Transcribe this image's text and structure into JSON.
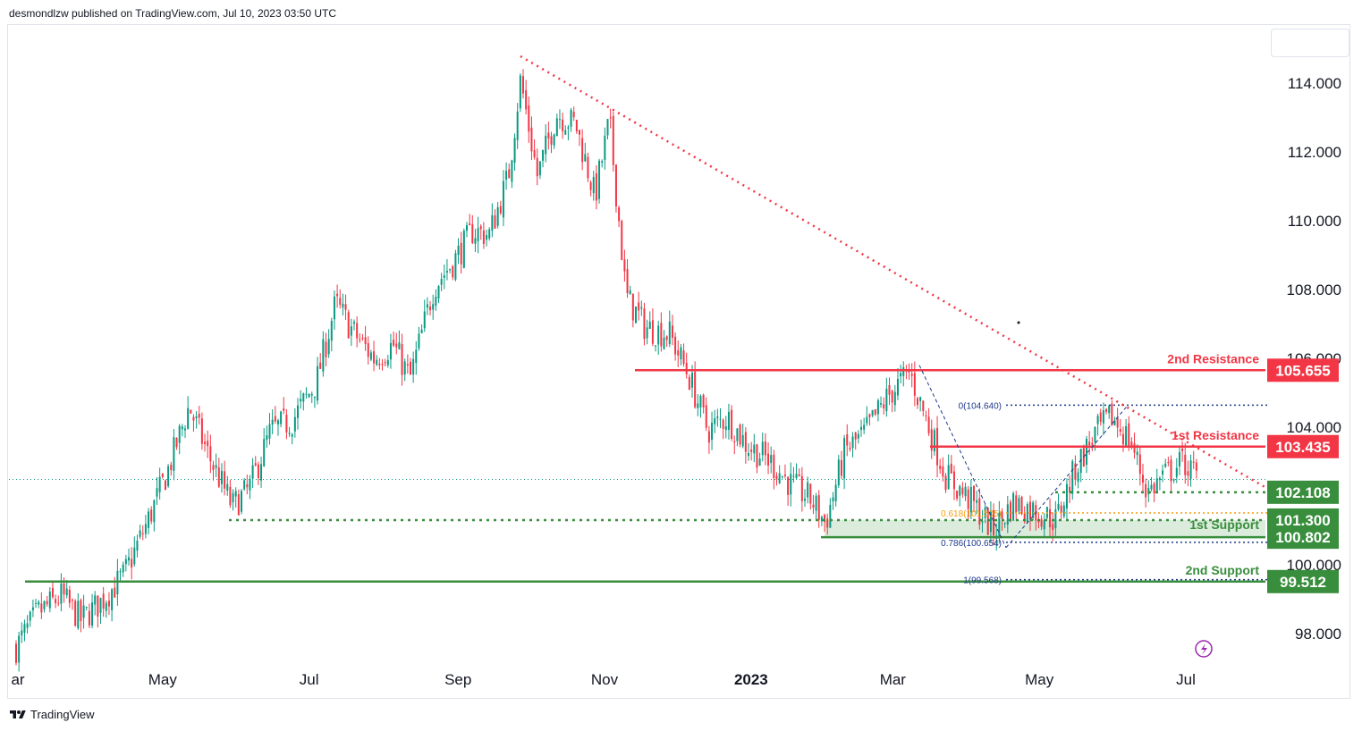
{
  "header": {
    "published_text": "desmondlzw published on TradingView.com, Jul 10, 2023 03:50 UTC"
  },
  "footer": {
    "brand_text": "TradingView"
  },
  "chart_data": {
    "type": "candlestick",
    "y_ticks": [
      "114.000",
      "112.000",
      "110.000",
      "108.000",
      "106.000",
      "104.000",
      "100.000",
      "98.000"
    ],
    "y_tick_values": [
      114,
      112,
      110,
      108,
      106,
      104,
      100,
      98
    ],
    "ylim": [
      97.3,
      115.5
    ],
    "x_ticks": [
      {
        "label": "ar",
        "date": "2022-03"
      },
      {
        "label": "May",
        "date": "2022-05"
      },
      {
        "label": "Jul",
        "date": "2022-07"
      },
      {
        "label": "Sep",
        "date": "2022-09"
      },
      {
        "label": "Nov",
        "date": "2022-11"
      },
      {
        "label": "2023",
        "date": "2023-01",
        "bold": true
      },
      {
        "label": "Mar",
        "date": "2023-03"
      },
      {
        "label": "May",
        "date": "2023-05"
      },
      {
        "label": "Jul",
        "date": "2023-07"
      }
    ],
    "levels": [
      {
        "name": "2nd Resistance",
        "value": 105.655,
        "label": "105.655",
        "color": "#f23645",
        "kind": "resistance"
      },
      {
        "name": "1st Resistance",
        "value": 103.435,
        "label": "103.435",
        "color": "#f23645",
        "kind": "resistance"
      },
      {
        "name": "",
        "value": 102.108,
        "label": "102.108",
        "color": "#388e3c",
        "kind": "pivot"
      },
      {
        "name": "1st Support",
        "value": 100.802,
        "label": "100.802",
        "color": "#388e3c",
        "kind": "support"
      },
      {
        "name": "",
        "value": 101.3,
        "label": "101.300",
        "color": "#388e3c",
        "kind": "support-top"
      },
      {
        "name": "2nd Support",
        "value": 99.512,
        "label": "99.512",
        "color": "#388e3c",
        "kind": "support"
      }
    ],
    "fib_levels": [
      {
        "label": "0(104.640)",
        "value": 104.64,
        "color": "#1e3a8a"
      },
      {
        "label": "0.618(101.505)",
        "value": 101.505,
        "color": "#f59e0b"
      },
      {
        "label": "0.786(100.654)",
        "value": 100.654,
        "color": "#1e3a8a"
      },
      {
        "label": "1(99.568)",
        "value": 99.568,
        "color": "#1e3a8a"
      }
    ],
    "trendline": {
      "from_date": "2022-09-27",
      "from_value": 114.78,
      "to_date": "2023-07-20",
      "to_value": 102.25
    },
    "current_price": 102.48,
    "colors": {
      "up": "#089981",
      "down": "#f23645",
      "bg": "#ffffff"
    },
    "candles_close_path": [
      [
        "2022-03-01",
        97.6
      ],
      [
        "2022-03-10",
        98.6
      ],
      [
        "2022-03-20",
        99.1
      ],
      [
        "2022-03-28",
        98.4
      ],
      [
        "2022-04-05",
        98.9
      ],
      [
        "2022-04-15",
        99.7
      ],
      [
        "2022-04-25",
        101.3
      ],
      [
        "2022-05-03",
        102.7
      ],
      [
        "2022-05-12",
        104.6
      ],
      [
        "2022-05-20",
        103.2
      ],
      [
        "2022-05-30",
        101.7
      ],
      [
        "2022-06-06",
        102.2
      ],
      [
        "2022-06-15",
        103.9
      ],
      [
        "2022-06-24",
        104.2
      ],
      [
        "2022-07-04",
        105.3
      ],
      [
        "2022-07-12",
        107.6
      ],
      [
        "2022-07-20",
        106.7
      ],
      [
        "2022-07-28",
        106.0
      ],
      [
        "2022-08-05",
        106.4
      ],
      [
        "2022-08-12",
        105.4
      ],
      [
        "2022-08-22",
        108.1
      ],
      [
        "2022-08-30",
        108.8
      ],
      [
        "2022-09-07",
        109.7
      ],
      [
        "2022-09-14",
        109.6
      ],
      [
        "2022-09-22",
        111.3
      ],
      [
        "2022-09-27",
        114.1
      ],
      [
        "2022-10-04",
        111.3
      ],
      [
        "2022-10-12",
        113.1
      ],
      [
        "2022-10-20",
        112.8
      ],
      [
        "2022-10-28",
        110.7
      ],
      [
        "2022-11-03",
        112.9
      ],
      [
        "2022-11-10",
        107.8
      ],
      [
        "2022-11-18",
        106.9
      ],
      [
        "2022-11-28",
        106.7
      ],
      [
        "2022-12-06",
        105.5
      ],
      [
        "2022-12-14",
        103.9
      ],
      [
        "2022-12-22",
        104.3
      ],
      [
        "2022-12-30",
        103.5
      ],
      [
        "2023-01-09",
        103.0
      ],
      [
        "2023-01-18",
        102.3
      ],
      [
        "2023-01-26",
        101.9
      ],
      [
        "2023-02-01",
        101.2
      ],
      [
        "2023-02-09",
        103.3
      ],
      [
        "2023-02-17",
        103.8
      ],
      [
        "2023-02-27",
        104.9
      ],
      [
        "2023-03-08",
        105.6
      ],
      [
        "2023-03-15",
        104.2
      ],
      [
        "2023-03-23",
        102.6
      ],
      [
        "2023-04-03",
        101.8
      ],
      [
        "2023-04-12",
        101.0
      ],
      [
        "2023-04-20",
        101.8
      ],
      [
        "2023-04-28",
        101.6
      ],
      [
        "2023-05-08",
        101.3
      ],
      [
        "2023-05-16",
        102.8
      ],
      [
        "2023-05-24",
        103.8
      ],
      [
        "2023-05-31",
        104.3
      ],
      [
        "2023-06-08",
        103.6
      ],
      [
        "2023-06-15",
        102.1
      ],
      [
        "2023-06-22",
        102.6
      ],
      [
        "2023-06-30",
        103.0
      ],
      [
        "2023-07-06",
        102.5
      ]
    ]
  }
}
